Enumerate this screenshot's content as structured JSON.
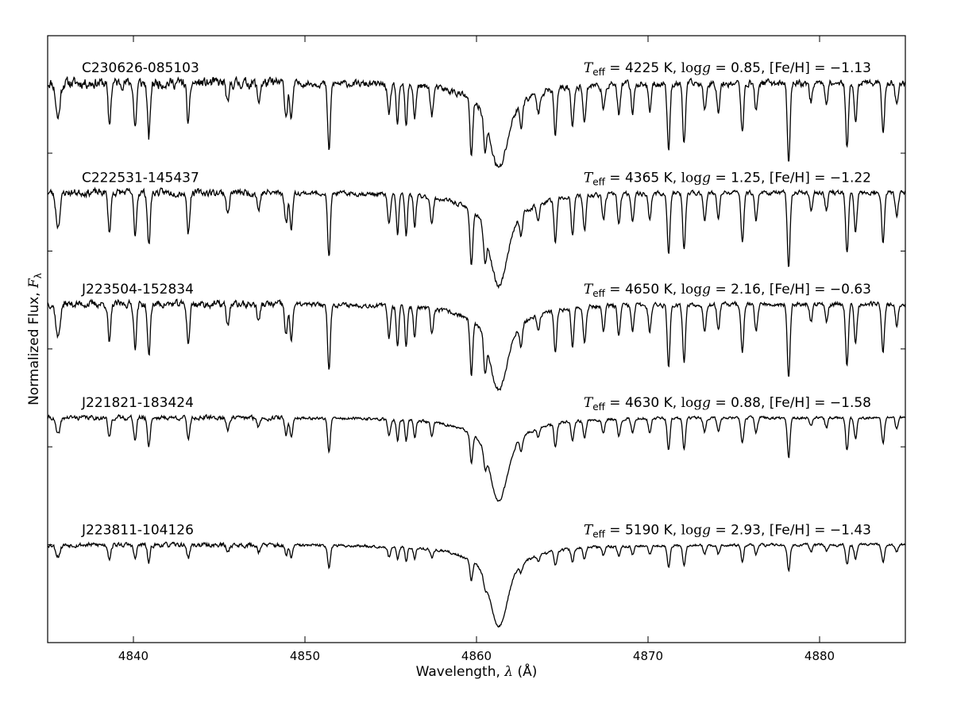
{
  "chart_data": {
    "type": "line",
    "xlabel_prefix": "Wavelength, ",
    "xlabel_symbol": "λ",
    "xlabel_unit": " (Å)",
    "ylabel_text": "Normalized Flux, ",
    "ylabel_symbol": "F",
    "ylabel_sub": "λ",
    "xlim": [
      4835,
      4885
    ],
    "ylim": [
      0,
      6.2
    ],
    "x_ticks": [
      4840,
      4850,
      4860,
      4870,
      4880
    ],
    "x_tick_labels": [
      "4840",
      "4850",
      "4860",
      "4870",
      "4880"
    ],
    "y_ticks": [
      5.0,
      4.0,
      3.0,
      2.0,
      1.0
    ],
    "grid": false,
    "lines_list": [
      {
        "w": 4835.6,
        "d": 0.38,
        "s": 0.12
      },
      {
        "w": 4838.6,
        "d": 0.45,
        "s": 0.08
      },
      {
        "w": 4840.1,
        "d": 0.48,
        "s": 0.08
      },
      {
        "w": 4840.9,
        "d": 0.6,
        "s": 0.08
      },
      {
        "w": 4843.2,
        "d": 0.45,
        "s": 0.08
      },
      {
        "w": 4845.5,
        "d": 0.25,
        "s": 0.08
      },
      {
        "w": 4847.3,
        "d": 0.2,
        "s": 0.08
      },
      {
        "w": 4848.9,
        "d": 0.35,
        "s": 0.08
      },
      {
        "w": 4849.2,
        "d": 0.4,
        "s": 0.08
      },
      {
        "w": 4851.4,
        "d": 0.72,
        "s": 0.08
      },
      {
        "w": 4854.9,
        "d": 0.35,
        "s": 0.08
      },
      {
        "w": 4855.4,
        "d": 0.45,
        "s": 0.07
      },
      {
        "w": 4855.9,
        "d": 0.45,
        "s": 0.07
      },
      {
        "w": 4856.4,
        "d": 0.35,
        "s": 0.07
      },
      {
        "w": 4857.4,
        "d": 0.3,
        "s": 0.08
      },
      {
        "w": 4859.7,
        "d": 0.62,
        "s": 0.08
      },
      {
        "w": 4860.5,
        "d": 0.35,
        "s": 0.08
      },
      {
        "w": 4862.6,
        "d": 0.25,
        "s": 0.08
      },
      {
        "w": 4863.6,
        "d": 0.2,
        "s": 0.08
      },
      {
        "w": 4864.6,
        "d": 0.5,
        "s": 0.08
      },
      {
        "w": 4865.6,
        "d": 0.45,
        "s": 0.08
      },
      {
        "w": 4866.3,
        "d": 0.4,
        "s": 0.08
      },
      {
        "w": 4867.4,
        "d": 0.3,
        "s": 0.08
      },
      {
        "w": 4868.3,
        "d": 0.35,
        "s": 0.08
      },
      {
        "w": 4869.1,
        "d": 0.3,
        "s": 0.08
      },
      {
        "w": 4870.1,
        "d": 0.3,
        "s": 0.08
      },
      {
        "w": 4871.2,
        "d": 0.7,
        "s": 0.08
      },
      {
        "w": 4872.1,
        "d": 0.65,
        "s": 0.08
      },
      {
        "w": 4873.3,
        "d": 0.3,
        "s": 0.08
      },
      {
        "w": 4874.1,
        "d": 0.3,
        "s": 0.08
      },
      {
        "w": 4875.5,
        "d": 0.55,
        "s": 0.08
      },
      {
        "w": 4876.3,
        "d": 0.3,
        "s": 0.08
      },
      {
        "w": 4878.2,
        "d": 0.85,
        "s": 0.08
      },
      {
        "w": 4879.5,
        "d": 0.2,
        "s": 0.08
      },
      {
        "w": 4880.4,
        "d": 0.2,
        "s": 0.08
      },
      {
        "w": 4881.6,
        "d": 0.7,
        "s": 0.08
      },
      {
        "w": 4882.1,
        "d": 0.45,
        "s": 0.08
      },
      {
        "w": 4883.7,
        "d": 0.55,
        "s": 0.08
      },
      {
        "w": 4884.5,
        "d": 0.25,
        "s": 0.08
      }
    ],
    "h_beta": {
      "w": 4861.3,
      "w1": 0.45,
      "w2": 1.6
    },
    "series": [
      {
        "name": "C230626-085103",
        "teff": "4225",
        "logg": "0.85",
        "feh": "−1.13",
        "continuum": 5.72,
        "line_scale": 1.0,
        "hbeta_depth": 0.92,
        "noise": 0.06,
        "seed": 11
      },
      {
        "name": "C222531-145437",
        "teff": "4365",
        "logg": "1.25",
        "feh": "−1.22",
        "continuum": 4.6,
        "line_scale": 0.95,
        "hbeta_depth": 1.0,
        "noise": 0.04,
        "seed": 23
      },
      {
        "name": "J223504-152834",
        "teff": "4650",
        "logg": "2.16",
        "feh": "−0.63",
        "continuum": 3.46,
        "line_scale": 0.95,
        "hbeta_depth": 0.92,
        "noise": 0.04,
        "seed": 37
      },
      {
        "name": "J221821-183424",
        "teff": "4630",
        "logg": "0.88",
        "feh": "−1.58",
        "continuum": 2.3,
        "line_scale": 0.5,
        "hbeta_depth": 0.9,
        "noise": 0.025,
        "seed": 41
      },
      {
        "name": "J223811-104126",
        "teff": "5190",
        "logg": "2.93",
        "feh": "−1.43",
        "continuum": 1.0,
        "line_scale": 0.32,
        "hbeta_depth": 0.88,
        "noise": 0.025,
        "seed": 53
      }
    ],
    "param_format": {
      "teff_sym": "T",
      "teff_sub": "eff",
      "teff_unit": " K",
      "logg_sym": "log",
      "logg_var": "g",
      "feh_label": "[Fe/H] = "
    }
  }
}
